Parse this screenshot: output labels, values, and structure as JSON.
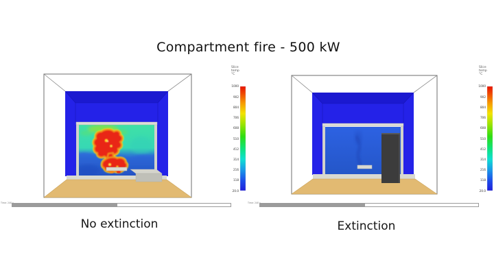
{
  "title": "Compartment fire - 500 kW",
  "panels": [
    {
      "id": "no-extinction",
      "caption": "No extinction",
      "time_label": "Time: 240 s",
      "progress_percent": 48,
      "colorbar": {
        "header_lines": [
          "Slice",
          "temp",
          "°C"
        ],
        "ticks": [
          "1000",
          "902",
          "804",
          "706",
          "608",
          "510",
          "412",
          "314",
          "216",
          "118",
          "20.0"
        ]
      }
    },
    {
      "id": "extinction",
      "caption": "Extinction",
      "time_label": "Time: 240 s",
      "progress_percent": 48,
      "colorbar": {
        "header_lines": [
          "Slice",
          "temp",
          "°C"
        ],
        "ticks": [
          "1000",
          "902",
          "804",
          "706",
          "608",
          "510",
          "412",
          "314",
          "216",
          "118",
          "20.0"
        ]
      }
    }
  ],
  "colors": {
    "text_dark": "#141414",
    "outline_gray": "#6e6e6e",
    "wall_blue": "#2422e8",
    "wall_blue_dark": "#1b19d0",
    "floor_tan": "#e2ba72",
    "floor_tan_edge": "#c8a158",
    "slab_gray": "#d9d9d1",
    "post_gray": "#d2d2ca",
    "lintel_gray": "#dcdcd6",
    "slice_teal": "#3fe0a6",
    "slice_lime": "#8ce23e",
    "slice_blue": "#2b66d8",
    "slice_blue_deep": "#2453c4",
    "slice_right_blue": "#2a5ede",
    "plume_blue": "#1c3fb0",
    "fire_red": "#e92513",
    "fire_orange": "#f1891a",
    "fire_yellow": "#f5df1e",
    "box_dark": "#3c3c3c",
    "bench_gray": "#c0c0b8",
    "progress_fill": "#9b9b9b",
    "progress_border": "#9a9a9a",
    "cb_0": "#e81400",
    "cb_1": "#ef4a00",
    "cb_2": "#f79a00",
    "cb_3": "#f3e300",
    "cb_4": "#9fe400",
    "cb_5": "#2ede12",
    "cb_6": "#0ee37e",
    "cb_7": "#0fdfd2",
    "cb_8": "#199ae8",
    "cb_9": "#1c50ea",
    "cb_10": "#2020dc"
  }
}
